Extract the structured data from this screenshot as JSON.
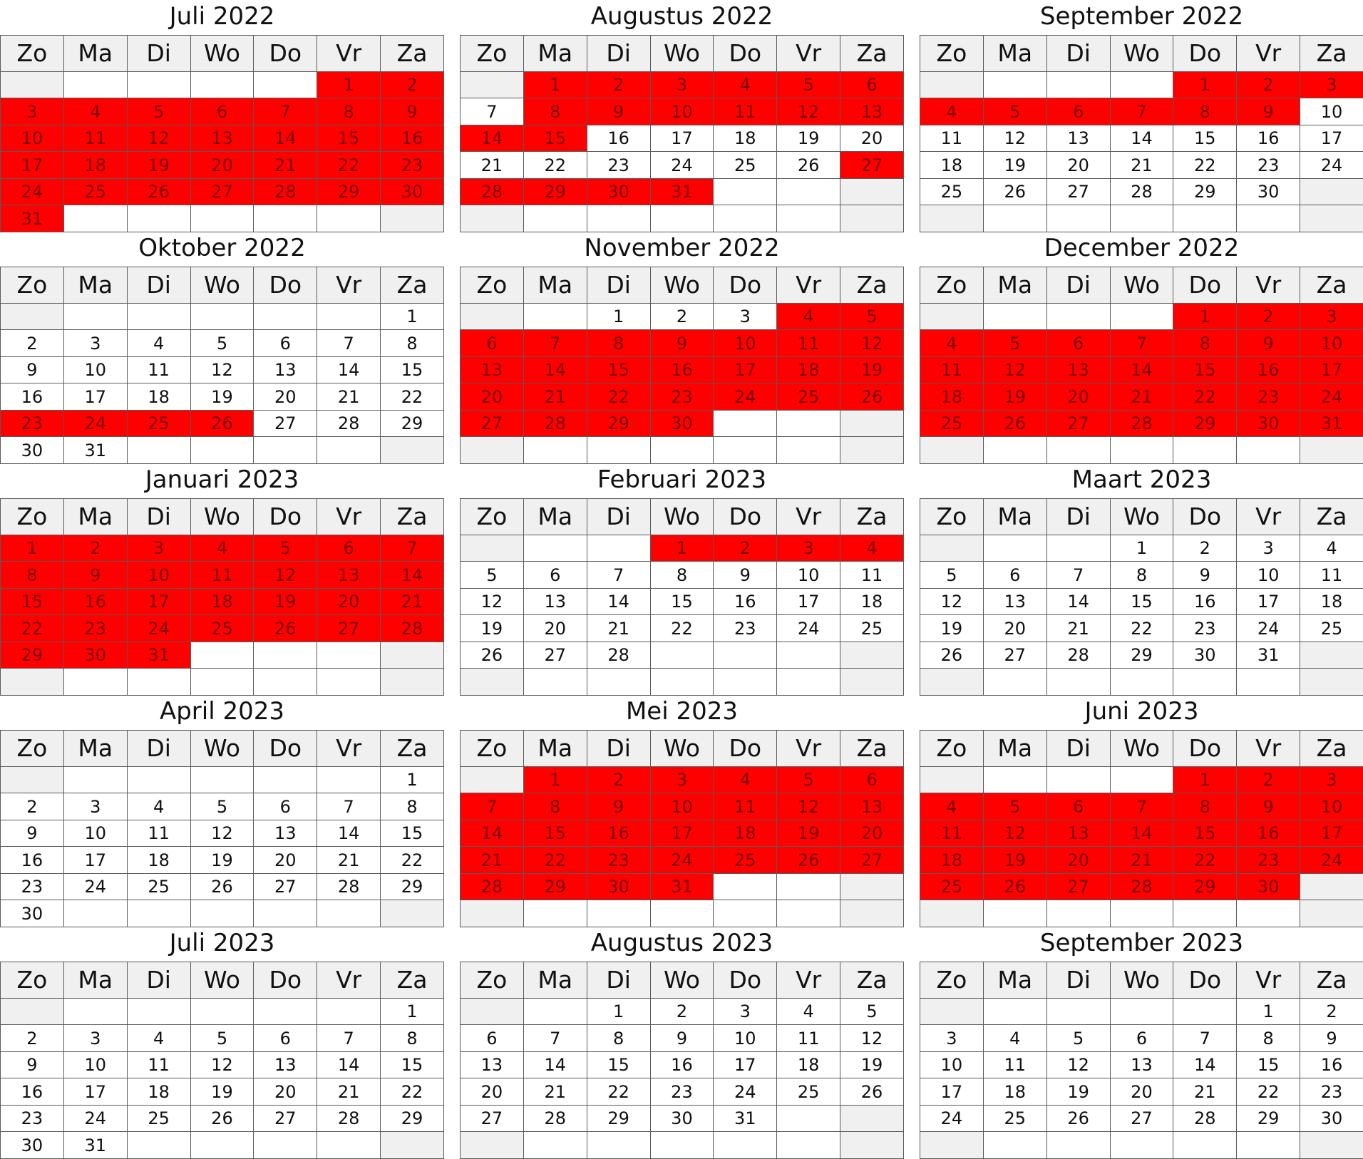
{
  "weekdays": [
    "Zo",
    "Ma",
    "Di",
    "Wo",
    "Do",
    "Vr",
    "Za"
  ],
  "colors": {
    "highlight": "#ff0000",
    "weekend_empty": "#f0f0f0",
    "header": "#f0f0f0",
    "border": "#5a5a5a"
  },
  "months": [
    {
      "title": "Juli 2022",
      "start_weekday": 5,
      "days": 31,
      "highlighted": [
        1,
        2,
        3,
        4,
        5,
        6,
        7,
        8,
        9,
        10,
        11,
        12,
        13,
        14,
        15,
        16,
        17,
        18,
        19,
        20,
        21,
        22,
        23,
        24,
        25,
        26,
        27,
        28,
        29,
        30,
        31
      ]
    },
    {
      "title": "Augustus 2022",
      "start_weekday": 1,
      "days": 31,
      "highlighted": [
        1,
        2,
        3,
        4,
        5,
        6,
        8,
        9,
        10,
        11,
        12,
        13,
        14,
        15,
        27,
        28,
        29,
        30,
        31
      ]
    },
    {
      "title": "September 2022",
      "start_weekday": 4,
      "days": 30,
      "highlighted": [
        1,
        2,
        3,
        4,
        5,
        6,
        7,
        8,
        9
      ]
    },
    {
      "title": "Oktober 2022",
      "start_weekday": 6,
      "days": 31,
      "highlighted": [
        23,
        24,
        25,
        26
      ]
    },
    {
      "title": "November 2022",
      "start_weekday": 2,
      "days": 30,
      "highlighted": [
        4,
        5,
        6,
        7,
        8,
        9,
        10,
        11,
        12,
        13,
        14,
        15,
        16,
        17,
        18,
        19,
        20,
        21,
        22,
        23,
        24,
        25,
        26,
        27,
        28,
        29,
        30
      ]
    },
    {
      "title": "December 2022",
      "start_weekday": 4,
      "days": 31,
      "highlighted": [
        1,
        2,
        3,
        4,
        5,
        6,
        7,
        8,
        9,
        10,
        11,
        12,
        13,
        14,
        15,
        16,
        17,
        18,
        19,
        20,
        21,
        22,
        23,
        24,
        25,
        26,
        27,
        28,
        29,
        30,
        31
      ]
    },
    {
      "title": "Januari 2023",
      "start_weekday": 0,
      "days": 31,
      "highlighted": [
        1,
        2,
        3,
        4,
        5,
        6,
        7,
        8,
        9,
        10,
        11,
        12,
        13,
        14,
        15,
        16,
        17,
        18,
        19,
        20,
        21,
        22,
        23,
        24,
        25,
        26,
        27,
        28,
        29,
        30,
        31
      ]
    },
    {
      "title": "Februari 2023",
      "start_weekday": 3,
      "days": 28,
      "highlighted": [
        1,
        2,
        3,
        4
      ]
    },
    {
      "title": "Maart 2023",
      "start_weekday": 3,
      "days": 31,
      "highlighted": []
    },
    {
      "title": "April 2023",
      "start_weekday": 6,
      "days": 30,
      "highlighted": []
    },
    {
      "title": "Mei 2023",
      "start_weekday": 1,
      "days": 31,
      "highlighted": [
        1,
        2,
        3,
        4,
        5,
        6,
        7,
        8,
        9,
        10,
        11,
        12,
        13,
        14,
        15,
        16,
        17,
        18,
        19,
        20,
        21,
        22,
        23,
        24,
        25,
        26,
        27,
        28,
        29,
        30,
        31
      ]
    },
    {
      "title": "Juni 2023",
      "start_weekday": 4,
      "days": 30,
      "highlighted": [
        1,
        2,
        3,
        4,
        5,
        6,
        7,
        8,
        9,
        10,
        11,
        12,
        13,
        14,
        15,
        16,
        17,
        18,
        19,
        20,
        21,
        22,
        23,
        24,
        25,
        26,
        27,
        28,
        29,
        30
      ]
    },
    {
      "title": "Juli 2023",
      "start_weekday": 6,
      "days": 31,
      "highlighted": []
    },
    {
      "title": "Augustus 2023",
      "start_weekday": 2,
      "days": 31,
      "highlighted": []
    },
    {
      "title": "September 2023",
      "start_weekday": 5,
      "days": 30,
      "highlighted": []
    }
  ]
}
